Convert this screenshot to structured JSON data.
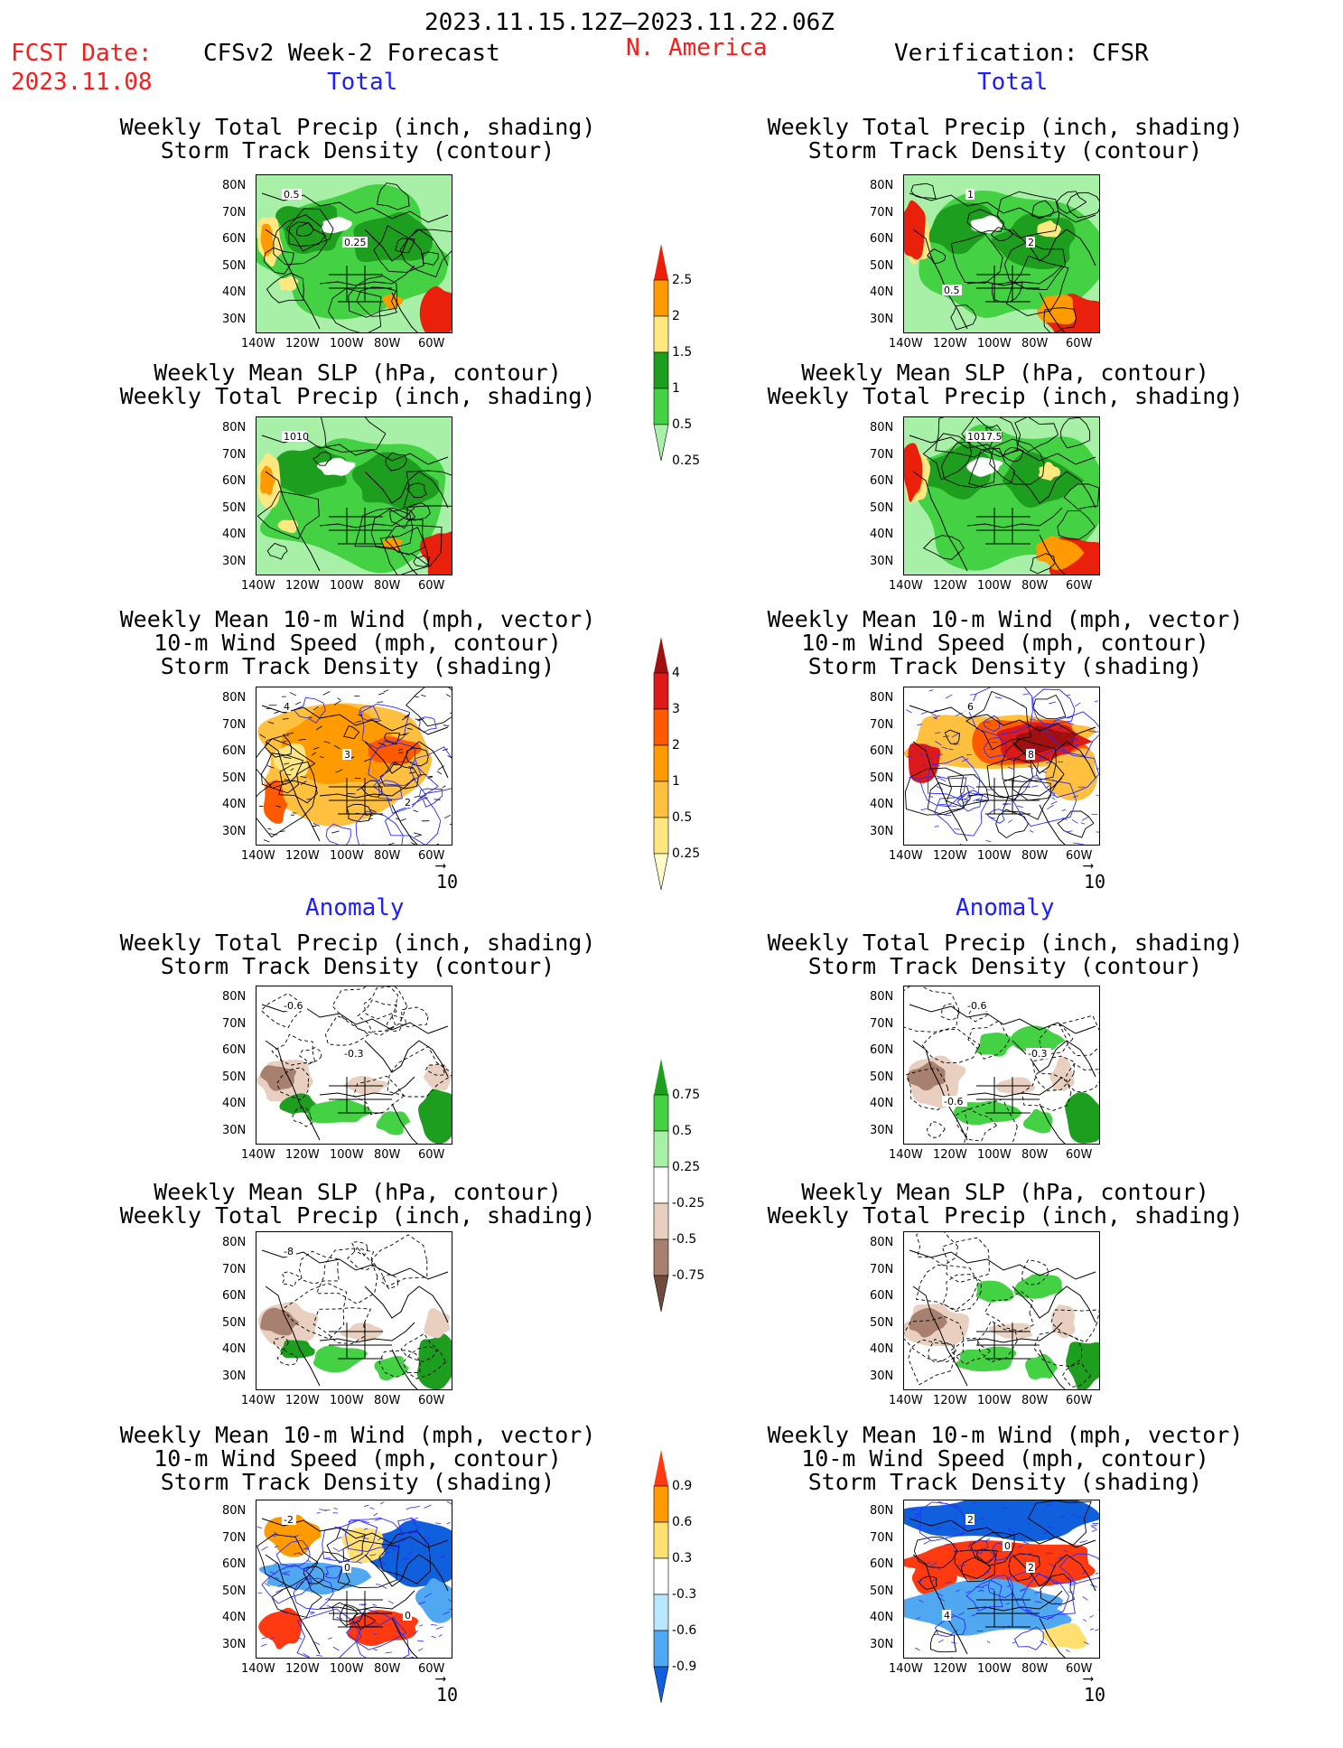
{
  "header": {
    "period": "2023.11.15.12Z–2023.11.22.06Z",
    "fcst_label": "FCST Date:",
    "fcst_date": "2023.11.08",
    "model": "CFSv2 Week-2 Forecast",
    "region": "N. America",
    "verification": "Verification: CFSR"
  },
  "sections": {
    "total": "Total",
    "anomaly": "Anomaly"
  },
  "panel_titles": {
    "precip_track": [
      "Weekly Total Precip (inch, shading)",
      "Storm Track Density (contour)"
    ],
    "slp_precip": [
      "Weekly Mean SLP (hPa, contour)",
      "Weekly Total Precip (inch, shading)"
    ],
    "wind_track": [
      "Weekly Mean 10-m Wind (mph, vector)",
      "10-m Wind Speed (mph, contour)",
      "Storm Track Density (shading)"
    ]
  },
  "axes": {
    "lat": [
      "80N",
      "70N",
      "60N",
      "50N",
      "40N",
      "30N"
    ],
    "lon": [
      "140W",
      "120W",
      "100W",
      "80W",
      "60W"
    ]
  },
  "contour_labels": {
    "fcst_precip_track": [
      "0.5",
      "0.25"
    ],
    "cfsr_precip_track": [
      "1",
      "2",
      "0.5"
    ],
    "fcst_slp": [
      "1010"
    ],
    "cfsr_slp": [
      "1017.5"
    ],
    "fcst_wind": [
      "4",
      "3",
      "2"
    ],
    "cfsr_wind": [
      "6",
      "8"
    ],
    "fcst_anom_precip": [
      "-0.6",
      "-0.3"
    ],
    "cfsr_anom_precip": [
      "-0.6",
      "-0.3",
      "-0.6"
    ],
    "fcst_anom_slp": [
      "-8"
    ],
    "fcst_anom_wind": [
      "-2",
      "0",
      "0"
    ],
    "cfsr_anom_wind": [
      "2",
      "2",
      "4",
      "0"
    ]
  },
  "vector_ref": "10",
  "colorbars": {
    "precip": {
      "labels": [
        "2.5",
        "2",
        "1.5",
        "1",
        "0.5",
        "0.25"
      ],
      "colors": [
        "#e8200c",
        "#ff9a00",
        "#ffe880",
        "#1e9e1e",
        "#44d244",
        "#a8f0a8"
      ]
    },
    "track": {
      "labels": [
        "4",
        "3",
        "2",
        "1",
        "0.5",
        "0.25"
      ],
      "colors": [
        "#a01010",
        "#dd1a1a",
        "#ff5a00",
        "#ff9a00",
        "#ffc040",
        "#ffe680",
        "#fffac8"
      ]
    },
    "precip_anom": {
      "labels": [
        "0.75",
        "0.5",
        "0.25",
        "-0.25",
        "-0.5",
        "-0.75"
      ],
      "colors": [
        "#1e9e1e",
        "#44d244",
        "#a8f0a8",
        "#ffffff",
        "#e8cfc0",
        "#a88070",
        "#704a3a"
      ]
    },
    "track_anom": {
      "labels": [
        "0.9",
        "0.6",
        "0.3",
        "-0.3",
        "-0.6",
        "-0.9"
      ],
      "colors": [
        "#ff3a10",
        "#ff9a00",
        "#ffe070",
        "#ffffff",
        "#b8e8ff",
        "#50a8f0",
        "#1060dd"
      ]
    }
  }
}
